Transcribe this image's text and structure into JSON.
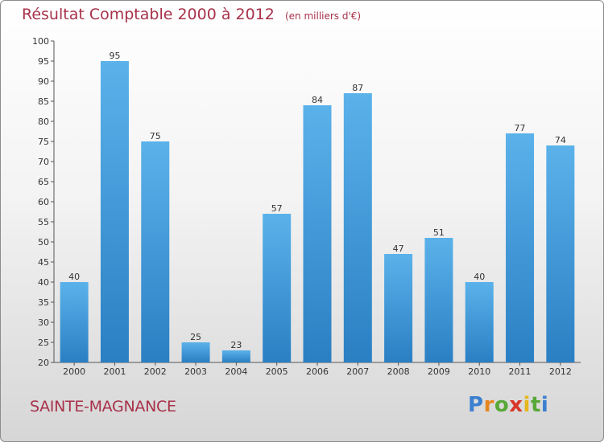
{
  "chart_data": {
    "type": "bar",
    "title": "Résultat Comptable 2000 à 2012",
    "unit_label": "(en milliers d'€)",
    "categories": [
      "2000",
      "2001",
      "2002",
      "2003",
      "2004",
      "2005",
      "2006",
      "2007",
      "2008",
      "2009",
      "2010",
      "2011",
      "2012"
    ],
    "values": [
      40,
      95,
      75,
      25,
      23,
      57,
      84,
      87,
      47,
      51,
      40,
      77,
      74
    ],
    "ylim": [
      20,
      100
    ],
    "yticks": [
      "20",
      "25",
      "30",
      "35",
      "40",
      "45",
      "50",
      "55",
      "60",
      "65",
      "70",
      "75",
      "80",
      "85",
      "90",
      "95",
      "100"
    ],
    "xlabel": "",
    "ylabel": "",
    "grid": false,
    "colors": {
      "bar_top": "#5bb2ea",
      "bar_bottom": "#2a7fc3",
      "title": "#a8324a"
    }
  },
  "footer": {
    "commune": "SAINTE-MAGNANCE",
    "logo_letters": [
      {
        "ch": "P",
        "color": "#3b7fd0"
      },
      {
        "ch": "r",
        "color": "#e6861e"
      },
      {
        "ch": "o",
        "color": "#59a83a"
      },
      {
        "ch": "x",
        "color": "#d9362b"
      },
      {
        "ch": "i",
        "color": "#e6b71e"
      },
      {
        "ch": "t",
        "color": "#59a83a"
      },
      {
        "ch": "i",
        "color": "#3b7fd0"
      }
    ]
  }
}
